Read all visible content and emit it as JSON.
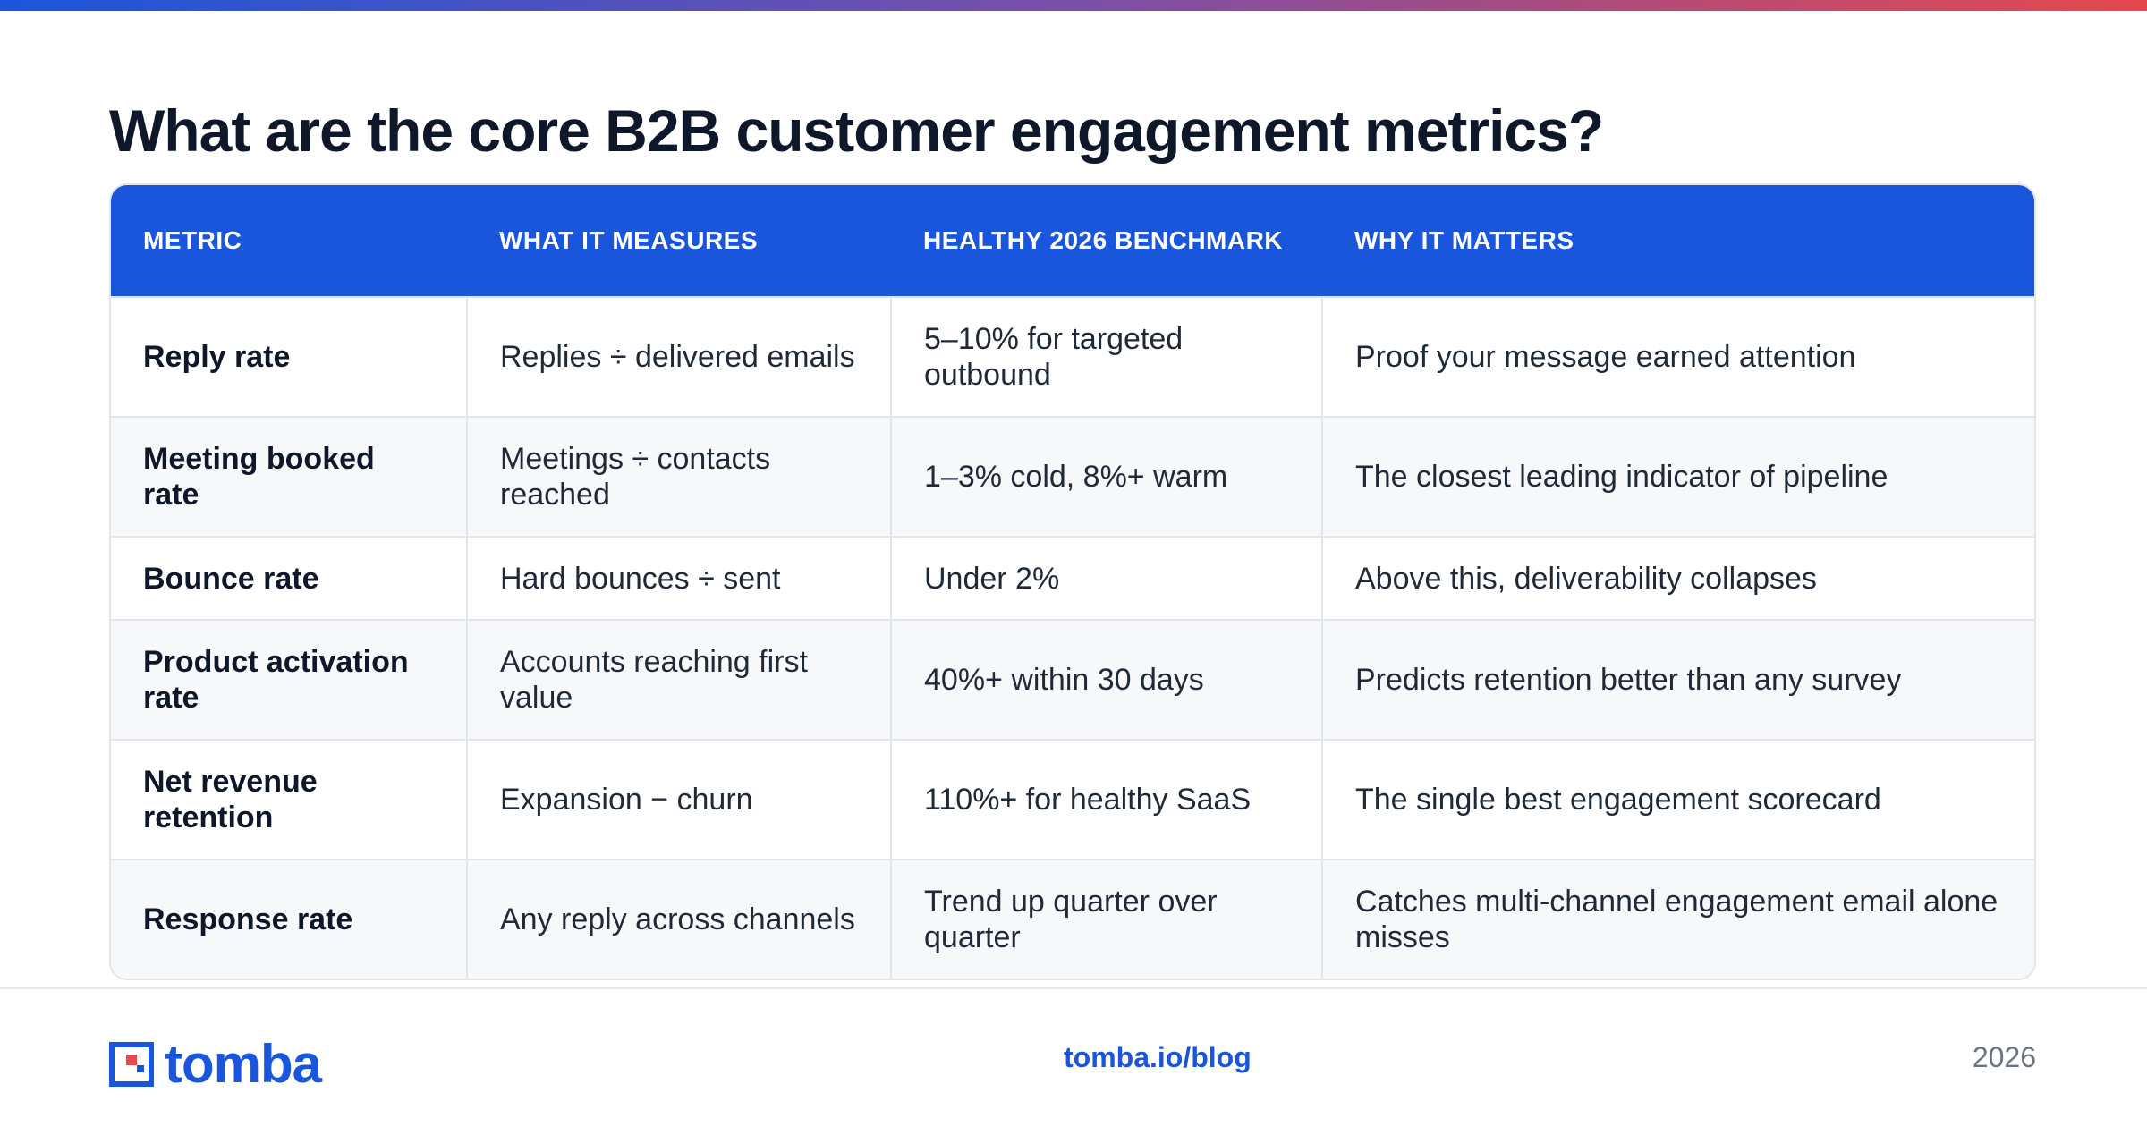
{
  "header": {
    "title": "What are the core B2B customer engagement metrics?"
  },
  "table": {
    "columns": [
      "METRIC",
      "WHAT IT MEASURES",
      "HEALTHY 2026 BENCHMARK",
      "WHY IT MATTERS"
    ],
    "rows": [
      [
        "Reply rate",
        "Replies ÷ delivered emails",
        "5–10% for targeted outbound",
        "Proof your message earned attention"
      ],
      [
        "Meeting booked rate",
        "Meetings ÷ contacts reached",
        "1–3% cold, 8%+ warm",
        "The closest leading indicator of pipeline"
      ],
      [
        "Bounce rate",
        "Hard bounces ÷ sent",
        "Under 2%",
        "Above this, deliverability collapses"
      ],
      [
        "Product activation rate",
        "Accounts reaching first value",
        "40%+ within 30 days",
        "Predicts retention better than any survey"
      ],
      [
        "Net revenue retention",
        "Expansion − churn",
        "110%+ for healthy SaaS",
        "The single best engagement scorecard"
      ],
      [
        "Response rate",
        "Any reply across channels",
        "Trend up quarter over quarter",
        "Catches multi-channel engagement email alone misses"
      ]
    ]
  },
  "footer": {
    "logo": "tomba",
    "url": "tomba.io/blog",
    "year": "2026"
  }
}
